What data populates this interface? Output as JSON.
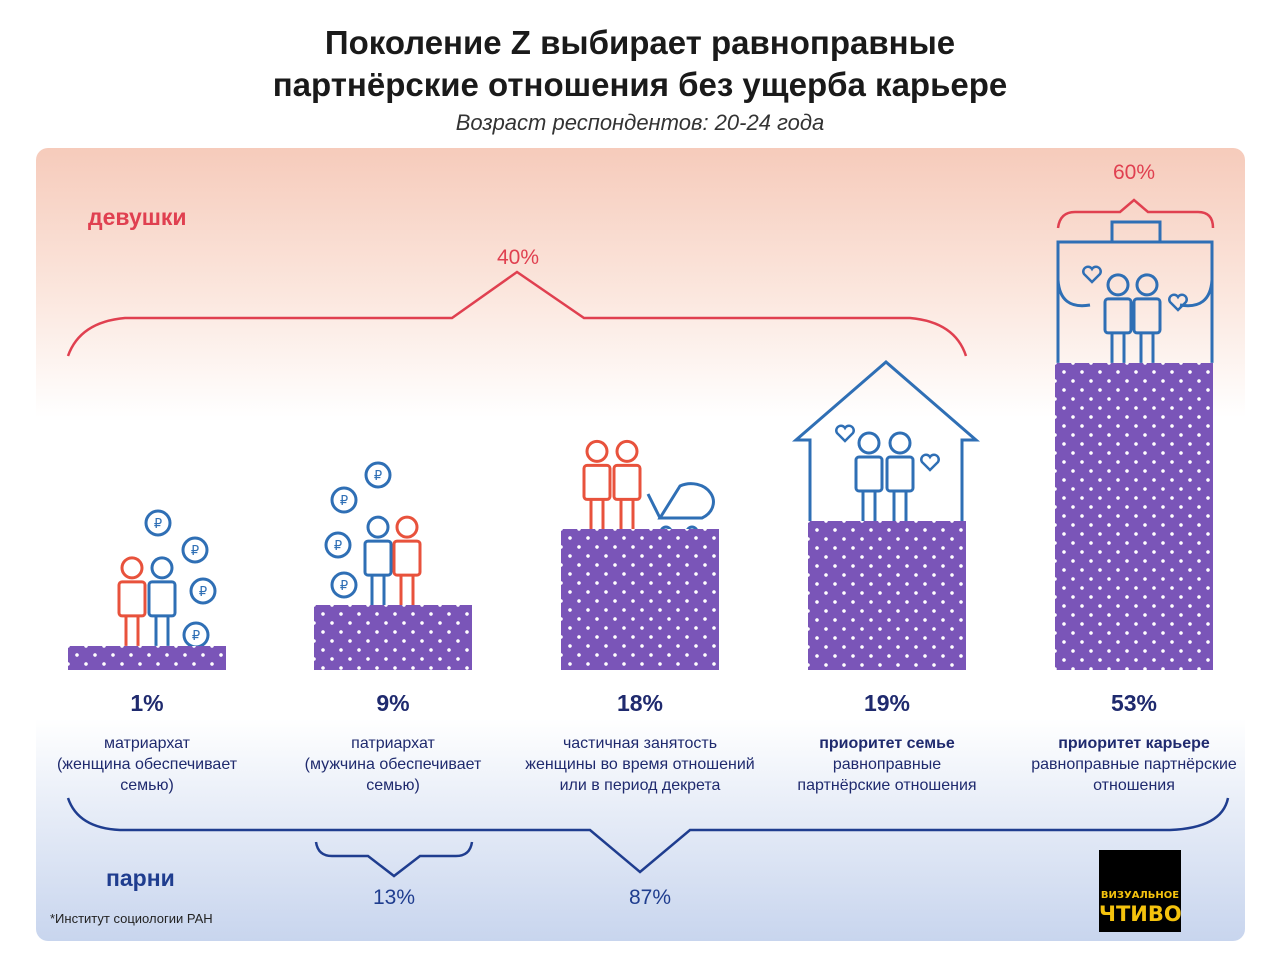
{
  "title_line1": "Поколение Z выбирает равноправные",
  "title_line2": "партнёрские отношения без ущерба карьере",
  "subtitle": "Возраст респондентов: 20-24 года",
  "girls_label": "девушки",
  "boys_label": "парни",
  "girls_group_40": "40%",
  "girls_group_60": "60%",
  "boys_group_13": "13%",
  "boys_group_87": "87%",
  "footnote": "*Институт социологии РАН",
  "logo": {
    "line1": "ВИЗУАЛЬНОЕ",
    "line2": "ЧТИВО"
  },
  "colors": {
    "bar": "#7a55b8",
    "girls": "#e04050",
    "boys": "#1f3d8f"
  },
  "chart_data": {
    "type": "bar",
    "title": "Поколение Z выбирает равноправные партнёрские отношения без ущерба карьере",
    "categories": [
      {
        "bold": "",
        "text": "матриархат (женщина обеспечивает семью)",
        "lines": [
          "матриархат",
          "(женщина обеспечивает",
          "семью)"
        ]
      },
      {
        "bold": "",
        "text": "патриархат (мужчина обеспечивает семью)",
        "lines": [
          "патриархат",
          "(мужчина обеспечивает",
          "семью)"
        ]
      },
      {
        "bold": "",
        "text": "частичная занятость женщины во время отношений или в период декрета",
        "lines": [
          "частичная занятость",
          "женщины во время отношений",
          "или в период декрета"
        ]
      },
      {
        "bold": "приоритет семье",
        "text": "равноправные партнёрские отношения",
        "lines": [
          "равноправные",
          "партнёрские отношения"
        ]
      },
      {
        "bold": "приоритет карьере",
        "text": "равноправные партнёрские отношения",
        "lines": [
          "равноправные партнёрские",
          "отношения"
        ]
      }
    ],
    "values": [
      1,
      9,
      18,
      19,
      53
    ],
    "value_labels": [
      "1%",
      "9%",
      "18%",
      "19%",
      "53%"
    ],
    "unit": "%"
  }
}
